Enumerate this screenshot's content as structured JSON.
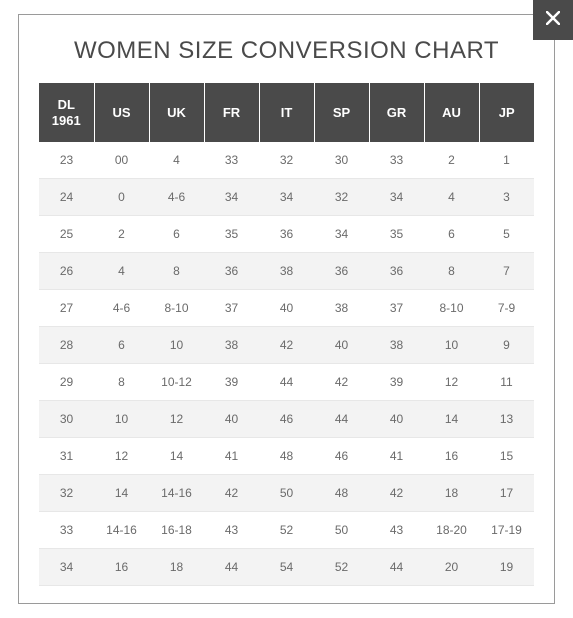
{
  "modal": {
    "title": "WOMEN SIZE CONVERSION CHART",
    "close_icon_name": "close-icon",
    "title_color": "#4a4a4a",
    "title_fontsize": 24,
    "panel_border_color": "#9a9a9a",
    "background_color": "#ffffff"
  },
  "table": {
    "type": "table",
    "header_bg": "#4a4a4a",
    "header_fg": "#ffffff",
    "header_fontsize": 13,
    "cell_fontsize": 12,
    "cell_color": "#6a6a6a",
    "row_border_color": "#e7e7e7",
    "row_alt_bg": "#f3f3f3",
    "columns": [
      "DL 1961",
      "US",
      "UK",
      "FR",
      "IT",
      "SP",
      "GR",
      "AU",
      "JP"
    ],
    "rows": [
      [
        "23",
        "00",
        "4",
        "33",
        "32",
        "30",
        "33",
        "2",
        "1"
      ],
      [
        "24",
        "0",
        "4-6",
        "34",
        "34",
        "32",
        "34",
        "4",
        "3"
      ],
      [
        "25",
        "2",
        "6",
        "35",
        "36",
        "34",
        "35",
        "6",
        "5"
      ],
      [
        "26",
        "4",
        "8",
        "36",
        "38",
        "36",
        "36",
        "8",
        "7"
      ],
      [
        "27",
        "4-6",
        "8-10",
        "37",
        "40",
        "38",
        "37",
        "8-10",
        "7-9"
      ],
      [
        "28",
        "6",
        "10",
        "38",
        "42",
        "40",
        "38",
        "10",
        "9"
      ],
      [
        "29",
        "8",
        "10-12",
        "39",
        "44",
        "42",
        "39",
        "12",
        "11"
      ],
      [
        "30",
        "10",
        "12",
        "40",
        "46",
        "44",
        "40",
        "14",
        "13"
      ],
      [
        "31",
        "12",
        "14",
        "41",
        "48",
        "46",
        "41",
        "16",
        "15"
      ],
      [
        "32",
        "14",
        "14-16",
        "42",
        "50",
        "48",
        "42",
        "18",
        "17"
      ],
      [
        "33",
        "14-16",
        "16-18",
        "43",
        "52",
        "50",
        "43",
        "18-20",
        "17-19"
      ],
      [
        "34",
        "16",
        "18",
        "44",
        "54",
        "52",
        "44",
        "20",
        "19"
      ]
    ]
  }
}
